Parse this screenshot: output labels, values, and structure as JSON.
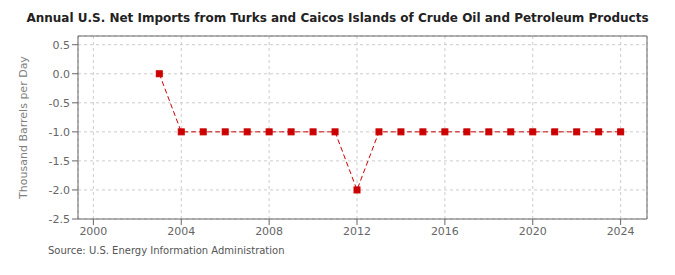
{
  "chart_data": {
    "type": "line",
    "title": "Annual U.S. Net Imports from Turks and Caicos Islands of Crude Oil and Petroleum Products",
    "ylabel": "Thousand Barrels per Day",
    "annotations": [
      "Source: U.S. Energy Information Administration"
    ],
    "x": [
      2003,
      2004,
      2005,
      2006,
      2007,
      2008,
      2009,
      2010,
      2011,
      2012,
      2013,
      2014,
      2015,
      2016,
      2017,
      2018,
      2019,
      2020,
      2021,
      2022,
      2023,
      2024
    ],
    "values": [
      0.0,
      -1.0,
      -1.0,
      -1.0,
      -1.0,
      -1.0,
      -1.0,
      -1.0,
      -1.0,
      -2.0,
      -1.0,
      -1.0,
      -1.0,
      -1.0,
      -1.0,
      -1.0,
      -1.0,
      -1.0,
      -1.0,
      -1.0,
      -1.0,
      -1.0
    ],
    "color": "#cc0000",
    "marker": "square",
    "line_style": "dashed",
    "xlim": [
      1999.3,
      2025.2
    ],
    "xticks": [
      2000,
      2004,
      2008,
      2012,
      2016,
      2020,
      2024
    ],
    "ylim": [
      -2.5,
      0.65
    ],
    "yticks": [
      0.5,
      {
        "value": 0,
        "label": "0.0"
      },
      -0.5,
      {
        "value": -1,
        "label": "-1.0"
      },
      -1.5,
      {
        "value": -2,
        "label": "-2.0"
      },
      -2.5
    ],
    "grid": true
  }
}
